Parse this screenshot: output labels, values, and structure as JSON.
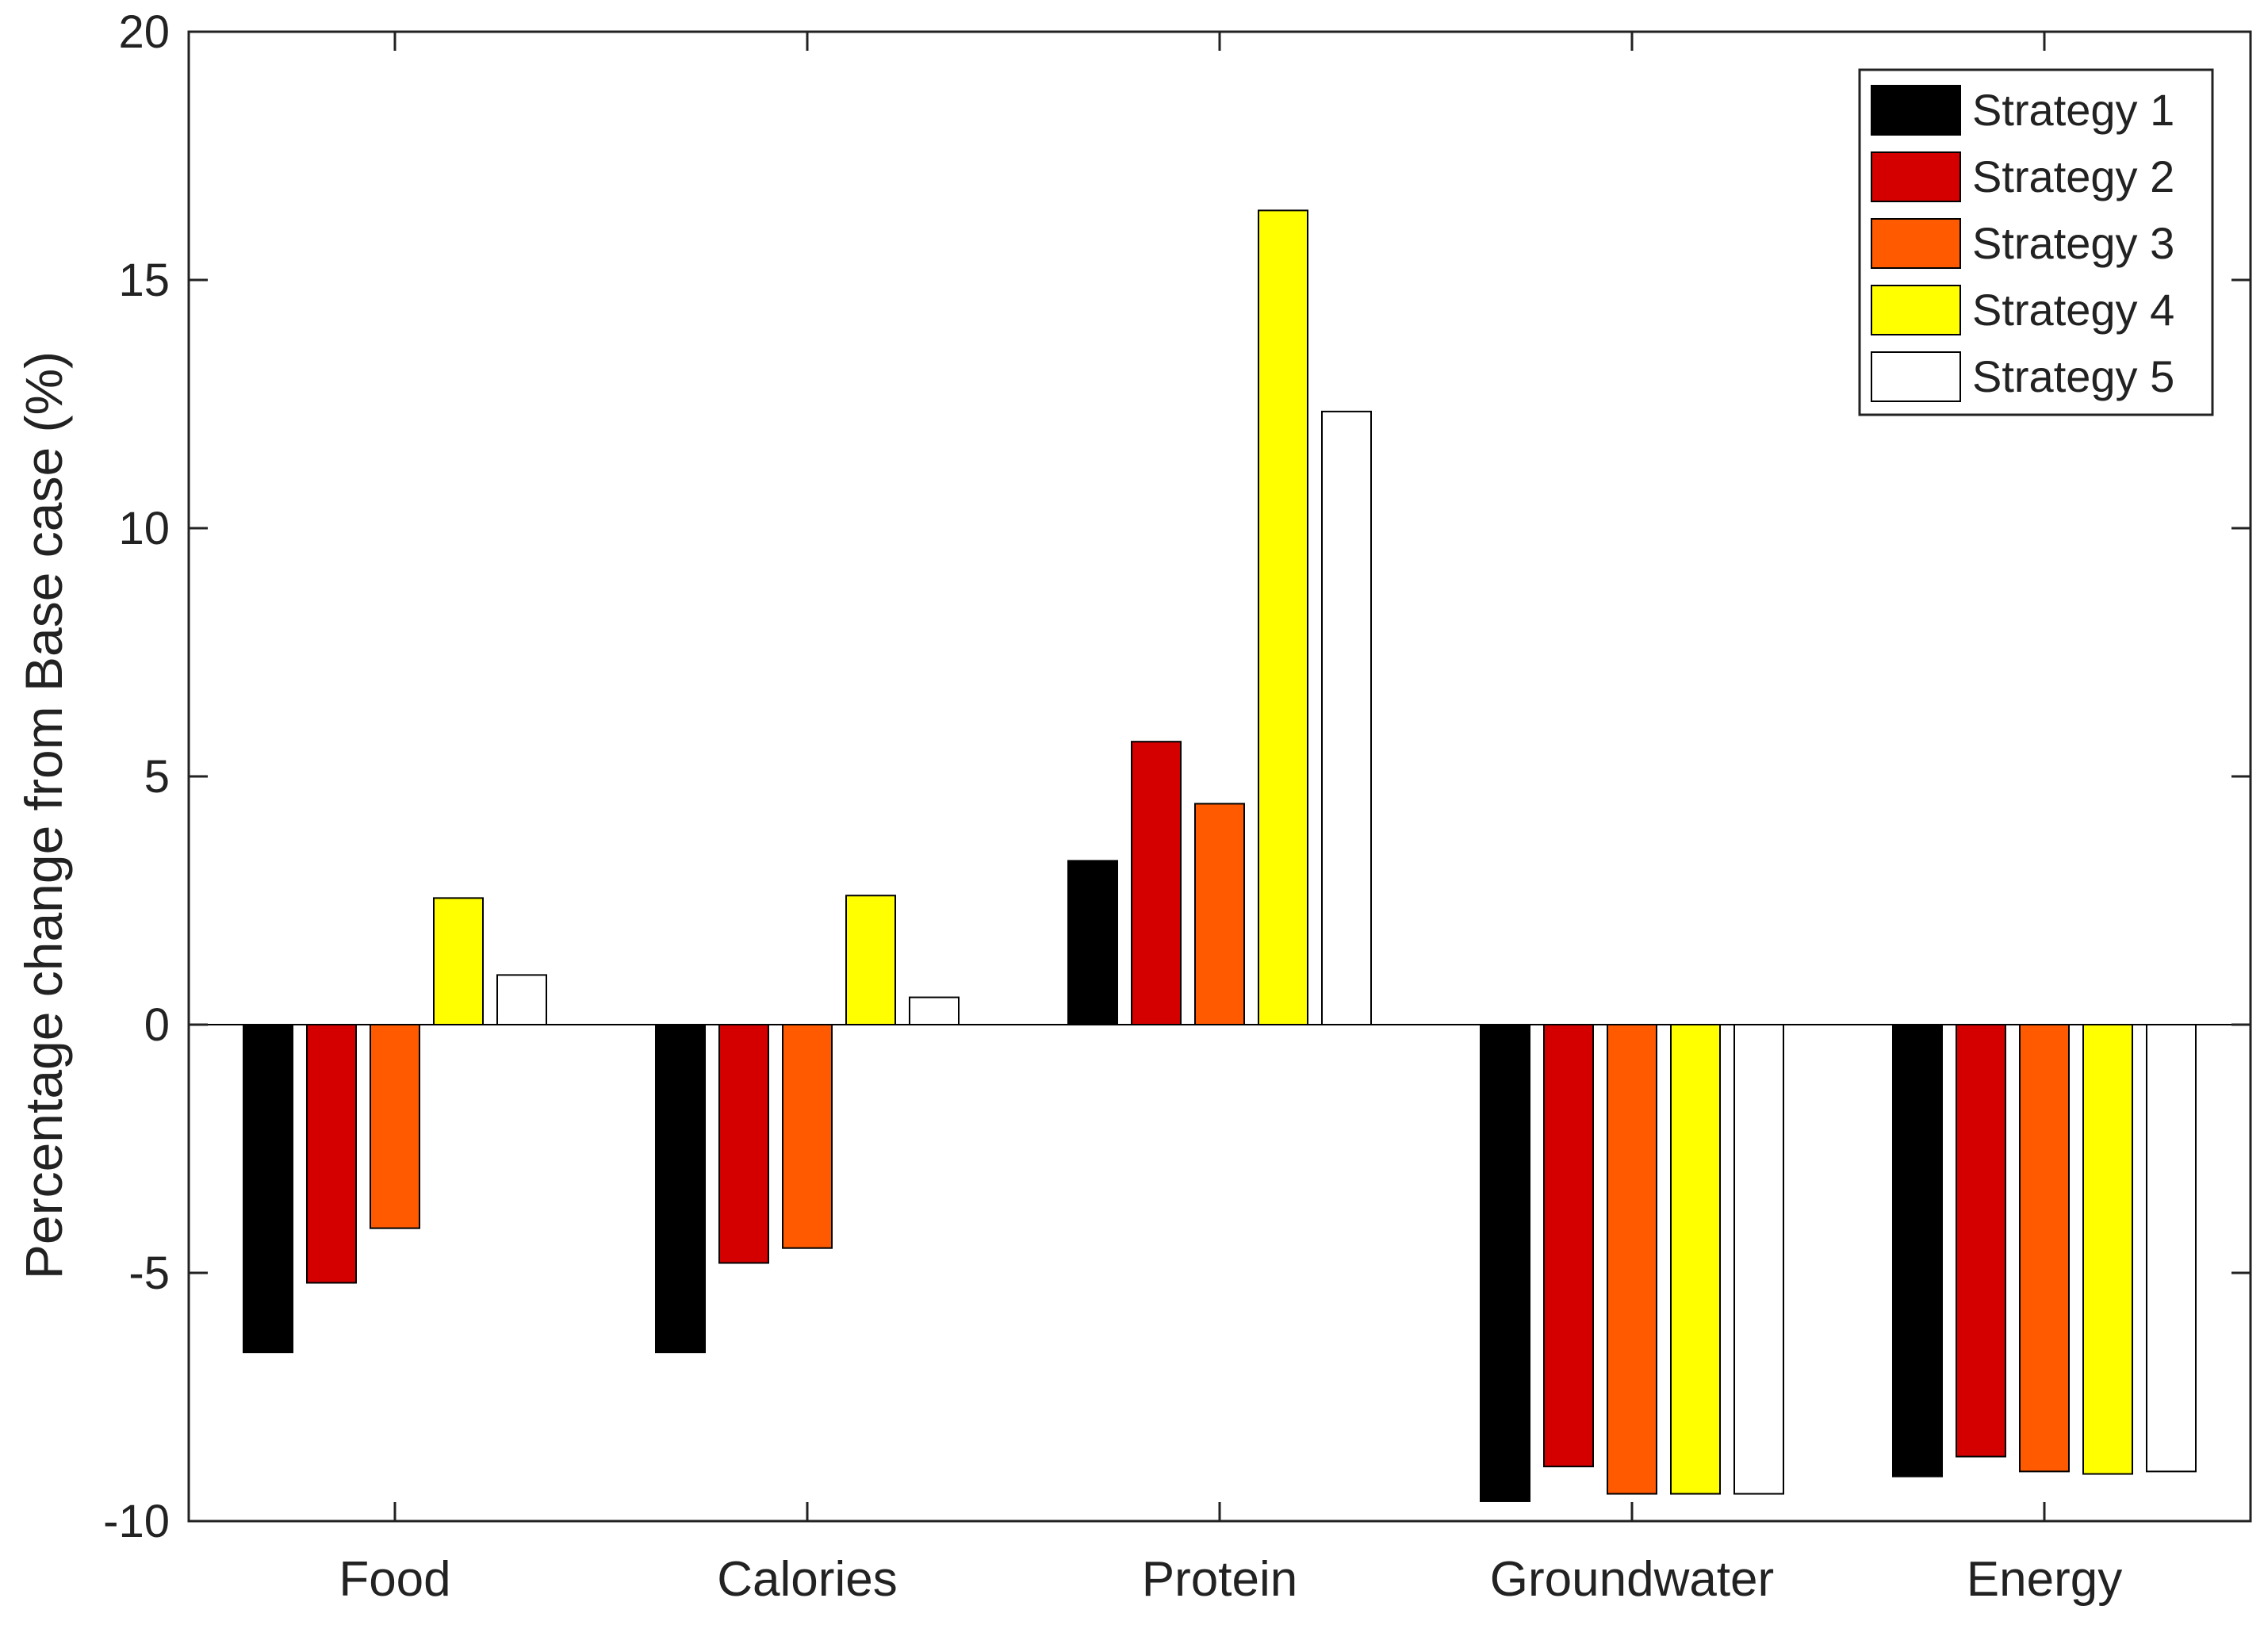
{
  "chart_data": {
    "type": "bar",
    "title": "",
    "xlabel": "",
    "ylabel": "Percentage change from Base case (%)",
    "ylim": [
      -10,
      20
    ],
    "yticks": [
      -10,
      -5,
      0,
      5,
      10,
      15,
      20
    ],
    "ytick_labels": [
      "-10",
      "-5",
      "0",
      "5",
      "10",
      "15",
      "20"
    ],
    "categories": [
      "Food",
      "Calories",
      "Protein",
      "Groundwater",
      "Energy"
    ],
    "legend_position": "top-right",
    "grid": false,
    "series": [
      {
        "name": "Strategy 1",
        "color": "#000000",
        "values": [
          -6.6,
          -6.6,
          3.3,
          -9.6,
          -9.1
        ]
      },
      {
        "name": "Strategy 2",
        "color": "#d40000",
        "values": [
          -5.2,
          -4.8,
          5.7,
          -8.9,
          -8.7
        ]
      },
      {
        "name": "Strategy 3",
        "color": "#ff5a00",
        "values": [
          -4.1,
          -4.5,
          4.45,
          -9.45,
          -9.0
        ]
      },
      {
        "name": "Strategy 4",
        "color": "#ffff00",
        "values": [
          2.55,
          2.6,
          16.4,
          -9.45,
          -9.05
        ]
      },
      {
        "name": "Strategy 5",
        "color": "#ffffff",
        "values": [
          1.0,
          0.55,
          12.35,
          -9.45,
          -9.0
        ]
      }
    ]
  }
}
